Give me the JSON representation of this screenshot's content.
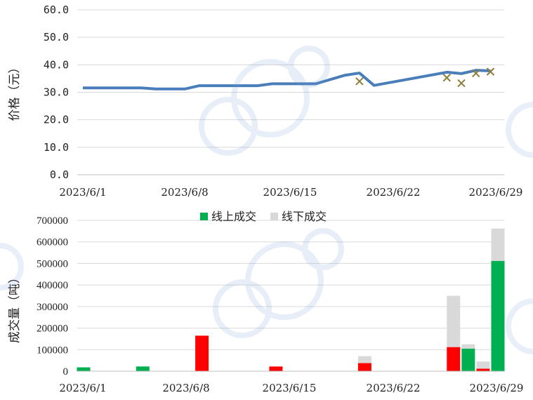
{
  "chart_data": [
    {
      "type": "line",
      "ylabel": "价格（元）",
      "ylim": [
        0,
        60
      ],
      "yticks": [
        "0.0",
        "10.0",
        "20.0",
        "30.0",
        "40.0",
        "50.0",
        "60.0"
      ],
      "x_range": [
        "2023-06-01",
        "2023-06-30"
      ],
      "xticks": [
        "2023/6/1",
        "2023/6/8",
        "2023/6/15",
        "2023/6/22",
        "2023/6/29"
      ],
      "grid": true,
      "series": [
        {
          "type": "line",
          "color": "#4a7ebb",
          "points": [
            [
              "2023-06-01",
              31.6
            ],
            [
              "2023-06-05",
              31.6
            ],
            [
              "2023-06-06",
              31.2
            ],
            [
              "2023-06-08",
              31.2
            ],
            [
              "2023-06-09",
              32.4
            ],
            [
              "2023-06-13",
              32.4
            ],
            [
              "2023-06-14",
              33.1
            ],
            [
              "2023-06-17",
              33.1
            ],
            [
              "2023-06-19",
              36.2
            ],
            [
              "2023-06-20",
              37.0
            ],
            [
              "2023-06-21",
              32.5
            ],
            [
              "2023-06-26",
              37.3
            ],
            [
              "2023-06-27",
              36.8
            ],
            [
              "2023-06-28",
              38.0
            ],
            [
              "2023-06-29",
              37.8
            ]
          ]
        },
        {
          "type": "scatter",
          "marker": "x",
          "color": "#8b7d3a",
          "points": [
            [
              "2023-06-20",
              34.0
            ],
            [
              "2023-06-26",
              35.3
            ],
            [
              "2023-06-27",
              33.3
            ],
            [
              "2023-06-28",
              36.9
            ],
            [
              "2023-06-29",
              37.5
            ]
          ]
        }
      ]
    },
    {
      "type": "bar",
      "stacked": true,
      "ylabel": "成交量（吨）",
      "ylim": [
        0,
        700000
      ],
      "yticks": [
        "0",
        "100000",
        "200000",
        "300000",
        "400000",
        "500000",
        "600000",
        "700000"
      ],
      "x_range": [
        "2023-06-01",
        "2023-06-30"
      ],
      "xticks": [
        "2023/6/1",
        "2023/6/8",
        "2023/6/15",
        "2023/6/22",
        "2023/6/29"
      ],
      "grid": true,
      "legend_position": "top-center",
      "legend": [
        {
          "name": "线上成交",
          "color": "#00b050"
        },
        {
          "name": "线下成交",
          "color": "#d9d9d9"
        }
      ],
      "bars": [
        {
          "date": "2023-06-01",
          "online": 18000,
          "offline": 0,
          "color": "#00b050"
        },
        {
          "date": "2023-06-05",
          "online": 22000,
          "offline": 0,
          "color": "#00b050"
        },
        {
          "date": "2023-06-09",
          "online": 165000,
          "offline": 0,
          "color": "#ff0000"
        },
        {
          "date": "2023-06-14",
          "online": 22000,
          "offline": 0,
          "color": "#ff0000"
        },
        {
          "date": "2023-06-20",
          "online": 38000,
          "offline": 32000,
          "color": "#ff0000"
        },
        {
          "date": "2023-06-26",
          "online": 112000,
          "offline": 238000,
          "color": "#ff0000"
        },
        {
          "date": "2023-06-27",
          "online": 105000,
          "offline": 20000,
          "color": "#00b050"
        },
        {
          "date": "2023-06-28",
          "online": 12000,
          "offline": 33000,
          "color": "#ff0000"
        },
        {
          "date": "2023-06-29",
          "online": 512000,
          "offline": 150000,
          "color": "#00b050"
        }
      ]
    }
  ]
}
